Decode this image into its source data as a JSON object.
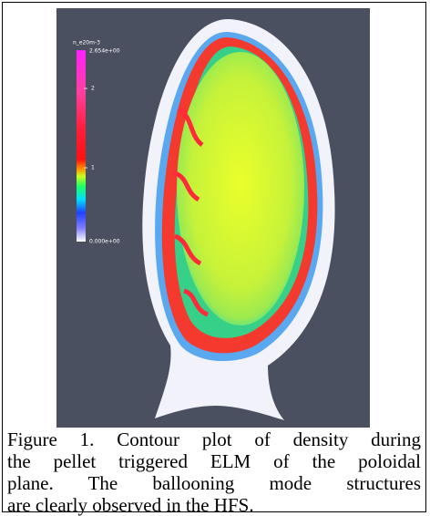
{
  "figure": {
    "colorbar": {
      "title": "n_e20m-3",
      "labels": [
        "2.654e+00",
        "2",
        "1",
        "0.000e+00"
      ]
    }
  },
  "caption": {
    "lines": [
      "Figure 1. Contour plot of density during",
      "the pellet triggered ELM of the poloidal",
      "plane. The ballooning mode structures",
      "are clearly observed in the HFS."
    ]
  }
}
